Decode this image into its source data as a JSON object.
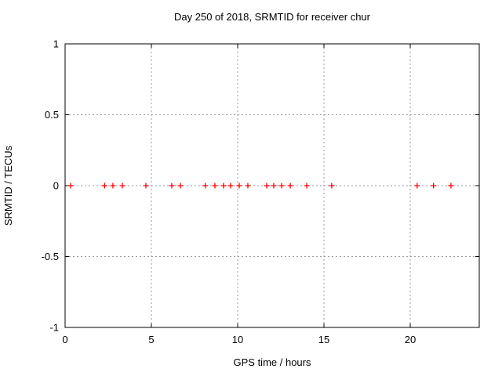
{
  "chart_data": {
    "type": "scatter",
    "title": "Day 250 of 2018, SRMTID for receiver chur",
    "xlabel": "GPS time / hours",
    "ylabel": "SRMTID / TECUs",
    "xlim": [
      0,
      24
    ],
    "ylim": [
      -1,
      1
    ],
    "xticks": [
      0,
      5,
      10,
      15,
      20
    ],
    "xtick_labels": [
      "0",
      "5",
      "10",
      "15",
      "20"
    ],
    "yticks": [
      1,
      0.5,
      0,
      -0.5,
      -1
    ],
    "ytick_labels": [
      "1",
      "0.5",
      "0",
      "-0.5",
      "-1"
    ],
    "grid": true,
    "legend": false,
    "marker": "plus",
    "series": [
      {
        "name": "SRMTID",
        "x": [
          0.32,
          2.29,
          2.77,
          3.32,
          4.68,
          6.18,
          6.68,
          8.12,
          8.68,
          9.18,
          9.59,
          10.09,
          10.59,
          11.68,
          12.09,
          12.55,
          13.05,
          14.0,
          15.45,
          20.4,
          21.35,
          22.36
        ],
        "y": [
          0,
          0,
          0,
          0,
          0,
          0,
          0,
          0,
          0,
          0,
          0,
          0,
          0,
          0,
          0,
          0,
          0,
          0,
          0,
          0,
          0,
          0
        ]
      }
    ],
    "colors": {
      "marker": "#ff0000",
      "grid": "#9a9a9a",
      "axis": "#000000",
      "background": "#ffffff",
      "text": "#000000"
    }
  }
}
